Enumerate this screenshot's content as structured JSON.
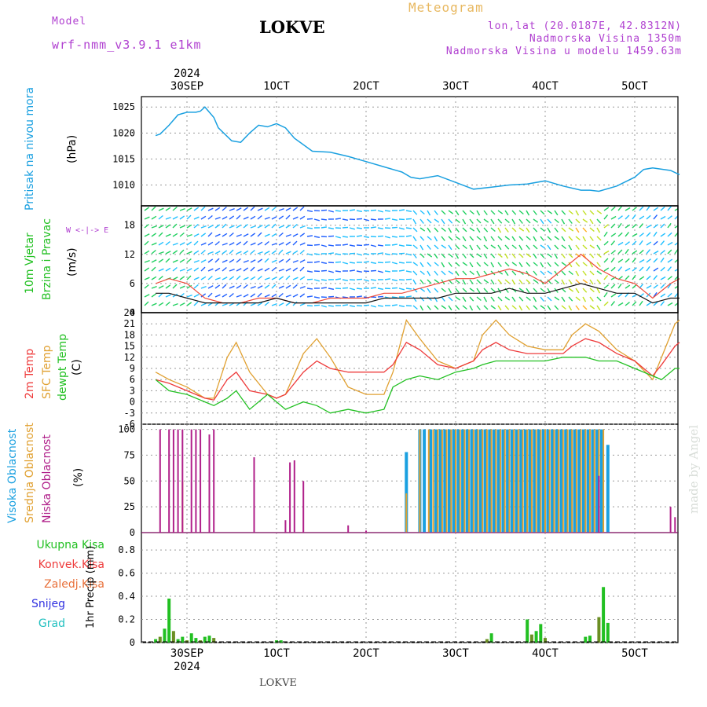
{
  "header": {
    "model_label": "Model",
    "model_name": "wrf-nmm_v3.9.1 e1km",
    "station": "LOKVE",
    "product": "Meteogram",
    "coords": "lon,lat (20.0187E, 42.8312N)",
    "elevation": "Nadmorska Visina 1350m",
    "model_elevation": "Nadmorska Visina u modelu 1459.63m",
    "footer": "LOKVE",
    "watermark": "made by Angel"
  },
  "colors": {
    "pressure": "#1aa0e0",
    "t2m": "#ee3b3b",
    "sfc": "#e0a030",
    "dewpt": "#22c022",
    "cloud_high": "#1aa0e0",
    "cloud_mid": "#e0a030",
    "cloud_low": "#b0208a",
    "precip_total": "#22c022",
    "precip_total_alt": "#6b8e23",
    "header_purple": "#b040d0",
    "header_orange": "#e8b860"
  },
  "time_axis": {
    "top_year": "2024",
    "bottom_year": "2024",
    "ticks": [
      "30SEP",
      "1OCT",
      "2OCT",
      "3OCT",
      "4OCT",
      "5OCT"
    ]
  },
  "chart_data": [
    {
      "type": "line",
      "title": "",
      "ylabel": "Pritisak na nivou mora",
      "unit": "(hPa)",
      "ylim": [
        1006,
        1027
      ],
      "yticks": [
        1010,
        1015,
        1020,
        1025
      ],
      "x_days": [
        -0.35,
        -0.3,
        -0.2,
        -0.1,
        0,
        0.1,
        0.15,
        0.2,
        0.3,
        0.35,
        0.5,
        0.6,
        0.7,
        0.8,
        0.9,
        1.0,
        1.1,
        1.2,
        1.4,
        1.6,
        1.8,
        2.0,
        2.2,
        2.4,
        2.5,
        2.6,
        2.8,
        3.0,
        3.2,
        3.4,
        3.6,
        3.8,
        4.0,
        4.2,
        4.4,
        4.5,
        4.6,
        4.8,
        5.0,
        5.1,
        5.2,
        5.4,
        5.5
      ],
      "series": [
        {
          "name": "Pritisak na nivou mora",
          "values": [
            1019.5,
            1019.8,
            1021.5,
            1023.5,
            1024.0,
            1024.0,
            1024.2,
            1025.0,
            1023.0,
            1021.0,
            1018.5,
            1018.2,
            1020.0,
            1021.5,
            1021.2,
            1021.8,
            1021.0,
            1019.0,
            1016.5,
            1016.3,
            1015.5,
            1014.5,
            1013.5,
            1012.5,
            1011.5,
            1011.2,
            1011.8,
            1010.5,
            1009.2,
            1009.6,
            1010.0,
            1010.2,
            1010.8,
            1009.8,
            1009.0,
            1009.0,
            1008.8,
            1009.8,
            1011.5,
            1013.0,
            1013.3,
            1012.8,
            1012.0
          ]
        }
      ]
    },
    {
      "type": "line",
      "title": "",
      "ylabel": "10m Vjetar Brzina i Pravac",
      "unit": "(m/s)",
      "ylim": [
        0,
        22
      ],
      "yticks": [
        0,
        6,
        12,
        18
      ],
      "direction_legend": "W <-|-> E",
      "x_days": [
        -0.35,
        -0.2,
        0,
        0.2,
        0.4,
        0.6,
        0.8,
        1.0,
        1.2,
        1.4,
        1.6,
        1.8,
        2.0,
        2.2,
        2.4,
        2.6,
        2.8,
        3.0,
        3.2,
        3.4,
        3.6,
        3.8,
        4.0,
        4.2,
        4.4,
        4.6,
        4.8,
        5.0,
        5.2,
        5.4,
        5.5
      ],
      "series": [
        {
          "name": "gust",
          "values": [
            6,
            7,
            6,
            3,
            2,
            2,
            3,
            3,
            2,
            2,
            3,
            3,
            3,
            4,
            4,
            5,
            6,
            7,
            7,
            8,
            9,
            8,
            6,
            9,
            12,
            9,
            7,
            6,
            3,
            6,
            7
          ]
        },
        {
          "name": "speed",
          "values": [
            4,
            4,
            3,
            2,
            2,
            2,
            2,
            3,
            2,
            2,
            2,
            2,
            2,
            3,
            3,
            3,
            3,
            4,
            4,
            4,
            5,
            4,
            4,
            5,
            6,
            5,
            4,
            4,
            2,
            3,
            3
          ]
        }
      ]
    },
    {
      "type": "line",
      "title": "",
      "ylabel": "2m Temp / SFC Temp / dewpt Temp",
      "unit": "(C)",
      "ylim": [
        -6,
        24
      ],
      "yticks": [
        -6,
        -3,
        0,
        3,
        6,
        9,
        12,
        15,
        18,
        21,
        24
      ],
      "x_days": [
        -0.35,
        -0.2,
        0,
        0.2,
        0.3,
        0.45,
        0.55,
        0.7,
        0.9,
        1.0,
        1.1,
        1.3,
        1.45,
        1.6,
        1.8,
        2.0,
        2.2,
        2.3,
        2.45,
        2.6,
        2.8,
        3.0,
        3.2,
        3.3,
        3.45,
        3.6,
        3.8,
        4.0,
        4.2,
        4.3,
        4.45,
        4.6,
        4.8,
        5.0,
        5.2,
        5.3,
        5.45,
        5.5
      ],
      "series": [
        {
          "name": "2m Temp",
          "values": [
            6,
            5,
            3,
            1,
            0.5,
            6,
            8,
            3,
            2,
            1,
            2,
            8,
            11,
            9,
            8,
            8,
            8,
            10,
            16,
            14,
            10,
            9,
            11,
            14,
            16,
            14,
            13,
            13,
            13,
            15,
            17,
            16,
            13,
            11,
            7,
            10,
            15,
            16
          ]
        },
        {
          "name": "SFC Temp",
          "values": [
            8,
            6,
            4,
            1,
            1,
            12,
            16,
            8,
            2,
            1,
            2,
            13,
            17,
            12,
            4,
            2,
            2,
            8,
            22,
            17,
            11,
            9,
            11,
            18,
            22,
            18,
            15,
            14,
            14,
            18,
            21,
            19,
            14,
            11,
            6,
            12,
            21,
            22
          ]
        },
        {
          "name": "dewpt Temp",
          "values": [
            6,
            3,
            2,
            0,
            -1,
            1,
            3,
            -2,
            2,
            0,
            -2,
            0,
            -1,
            -3,
            -2,
            -3,
            -2,
            4,
            6,
            7,
            6,
            8,
            9,
            10,
            11,
            11,
            11,
            11,
            12,
            12,
            12,
            11,
            11,
            9,
            7,
            6,
            9,
            9
          ]
        }
      ]
    },
    {
      "type": "bar",
      "title": "",
      "ylabel": "Visoka Oblacnost / Srednja Oblacnost / Niska Oblacnost",
      "unit": "(%)",
      "ylim": [
        0,
        105
      ],
      "yticks": [
        0,
        25,
        50,
        75,
        100
      ],
      "series": [
        {
          "name": "Niska Oblacnost",
          "x_days": [
            -0.3,
            -0.2,
            -0.15,
            -0.1,
            -0.05,
            0.05,
            0.1,
            0.15,
            0.25,
            0.3,
            0.75,
            1.1,
            1.15,
            1.2,
            1.3,
            1.8,
            2.0,
            4.6,
            5.4,
            5.45
          ],
          "values": [
            100,
            100,
            100,
            100,
            100,
            100,
            100,
            100,
            95,
            100,
            73,
            12,
            68,
            70,
            50,
            7,
            2,
            55,
            25,
            15
          ]
        },
        {
          "name": "Srednja Oblacnost",
          "x_days": [
            -0.05,
            2.45,
            2.6,
            2.7,
            2.75,
            2.8,
            2.85,
            2.9,
            2.95,
            3.0,
            3.05,
            3.1,
            3.15,
            3.2,
            3.25,
            3.3,
            3.35,
            3.4,
            3.45,
            3.5,
            3.55,
            3.6,
            3.65,
            3.7,
            3.75,
            3.8,
            3.85,
            3.9,
            3.95,
            4.0,
            4.05,
            4.1,
            4.15,
            4.2,
            4.25,
            4.3,
            4.35,
            4.4,
            4.45,
            4.5,
            4.55,
            4.6,
            4.65
          ],
          "values": [
            50,
            38,
            100,
            100,
            100,
            100,
            100,
            100,
            100,
            100,
            100,
            100,
            100,
            100,
            100,
            100,
            100,
            100,
            100,
            100,
            100,
            100,
            100,
            100,
            100,
            100,
            100,
            100,
            100,
            100,
            100,
            100,
            100,
            100,
            100,
            100,
            100,
            100,
            100,
            100,
            100,
            100,
            100
          ]
        },
        {
          "name": "Visoka Oblacnost",
          "x_days": [
            2.45,
            2.6,
            2.65,
            2.72,
            2.78,
            2.83,
            2.88,
            2.93,
            2.98,
            3.03,
            3.08,
            3.13,
            3.18,
            3.23,
            3.28,
            3.33,
            3.38,
            3.43,
            3.48,
            3.53,
            3.58,
            3.63,
            3.68,
            3.73,
            3.78,
            3.83,
            3.88,
            3.93,
            3.98,
            4.03,
            4.08,
            4.13,
            4.18,
            4.23,
            4.28,
            4.33,
            4.38,
            4.43,
            4.48,
            4.53,
            4.58,
            4.63,
            4.7
          ],
          "values": [
            78,
            100,
            100,
            100,
            100,
            100,
            100,
            100,
            100,
            100,
            100,
            100,
            100,
            100,
            100,
            100,
            100,
            100,
            100,
            100,
            100,
            100,
            100,
            100,
            100,
            100,
            100,
            100,
            100,
            100,
            100,
            100,
            100,
            100,
            100,
            100,
            100,
            100,
            100,
            100,
            100,
            100,
            85
          ]
        }
      ]
    },
    {
      "type": "bar",
      "title": "",
      "ylabel": "1hr Precip",
      "unit": "(mm)",
      "ylim": [
        0,
        0.95
      ],
      "yticks": [
        0,
        0.2,
        0.4,
        0.6,
        0.8
      ],
      "legend": [
        "Ukupna Kisa",
        "Konvek.Kisa",
        "Zaledj.Kisa",
        "Snijeg",
        "Grad"
      ],
      "series": [
        {
          "name": "Ukupna Kisa",
          "x_days": [
            -0.35,
            -0.3,
            -0.25,
            -0.2,
            -0.15,
            -0.1,
            -0.05,
            0.0,
            0.05,
            0.1,
            0.15,
            0.2,
            0.25,
            0.3,
            1.0,
            1.05,
            3.35,
            3.4,
            3.8,
            3.85,
            3.9,
            3.95,
            4.0,
            4.45,
            4.5,
            4.6,
            4.65,
            4.7
          ],
          "values": [
            0.03,
            0.05,
            0.12,
            0.38,
            0.1,
            0.03,
            0.05,
            0.02,
            0.08,
            0.04,
            0.02,
            0.05,
            0.06,
            0.04,
            0.02,
            0.02,
            0.03,
            0.08,
            0.2,
            0.07,
            0.1,
            0.16,
            0.04,
            0.05,
            0.06,
            0.22,
            0.48,
            0.17
          ]
        }
      ]
    }
  ]
}
